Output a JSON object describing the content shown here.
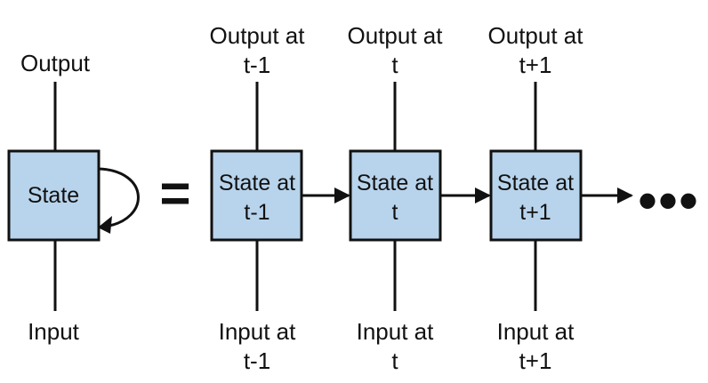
{
  "folded": {
    "output_label": "Output",
    "state_label": "State",
    "input_label": "Input"
  },
  "equals_sign": "=",
  "unrolled": [
    {
      "output_label": [
        "Output at",
        "t-1"
      ],
      "state_label": [
        "State at",
        "t-1"
      ],
      "input_label": [
        "Input at",
        "t-1"
      ]
    },
    {
      "output_label": [
        "Output at",
        "t"
      ],
      "state_label": [
        "State at",
        "t"
      ],
      "input_label": [
        "Input at",
        "t"
      ]
    },
    {
      "output_label": [
        "Output at",
        "t+1"
      ],
      "state_label": [
        "State at",
        "t+1"
      ],
      "input_label": [
        "Input at",
        "t+1"
      ]
    }
  ],
  "continuation": "•••",
  "colors": {
    "box_fill": "#b8d4ec",
    "stroke": "#111111"
  }
}
